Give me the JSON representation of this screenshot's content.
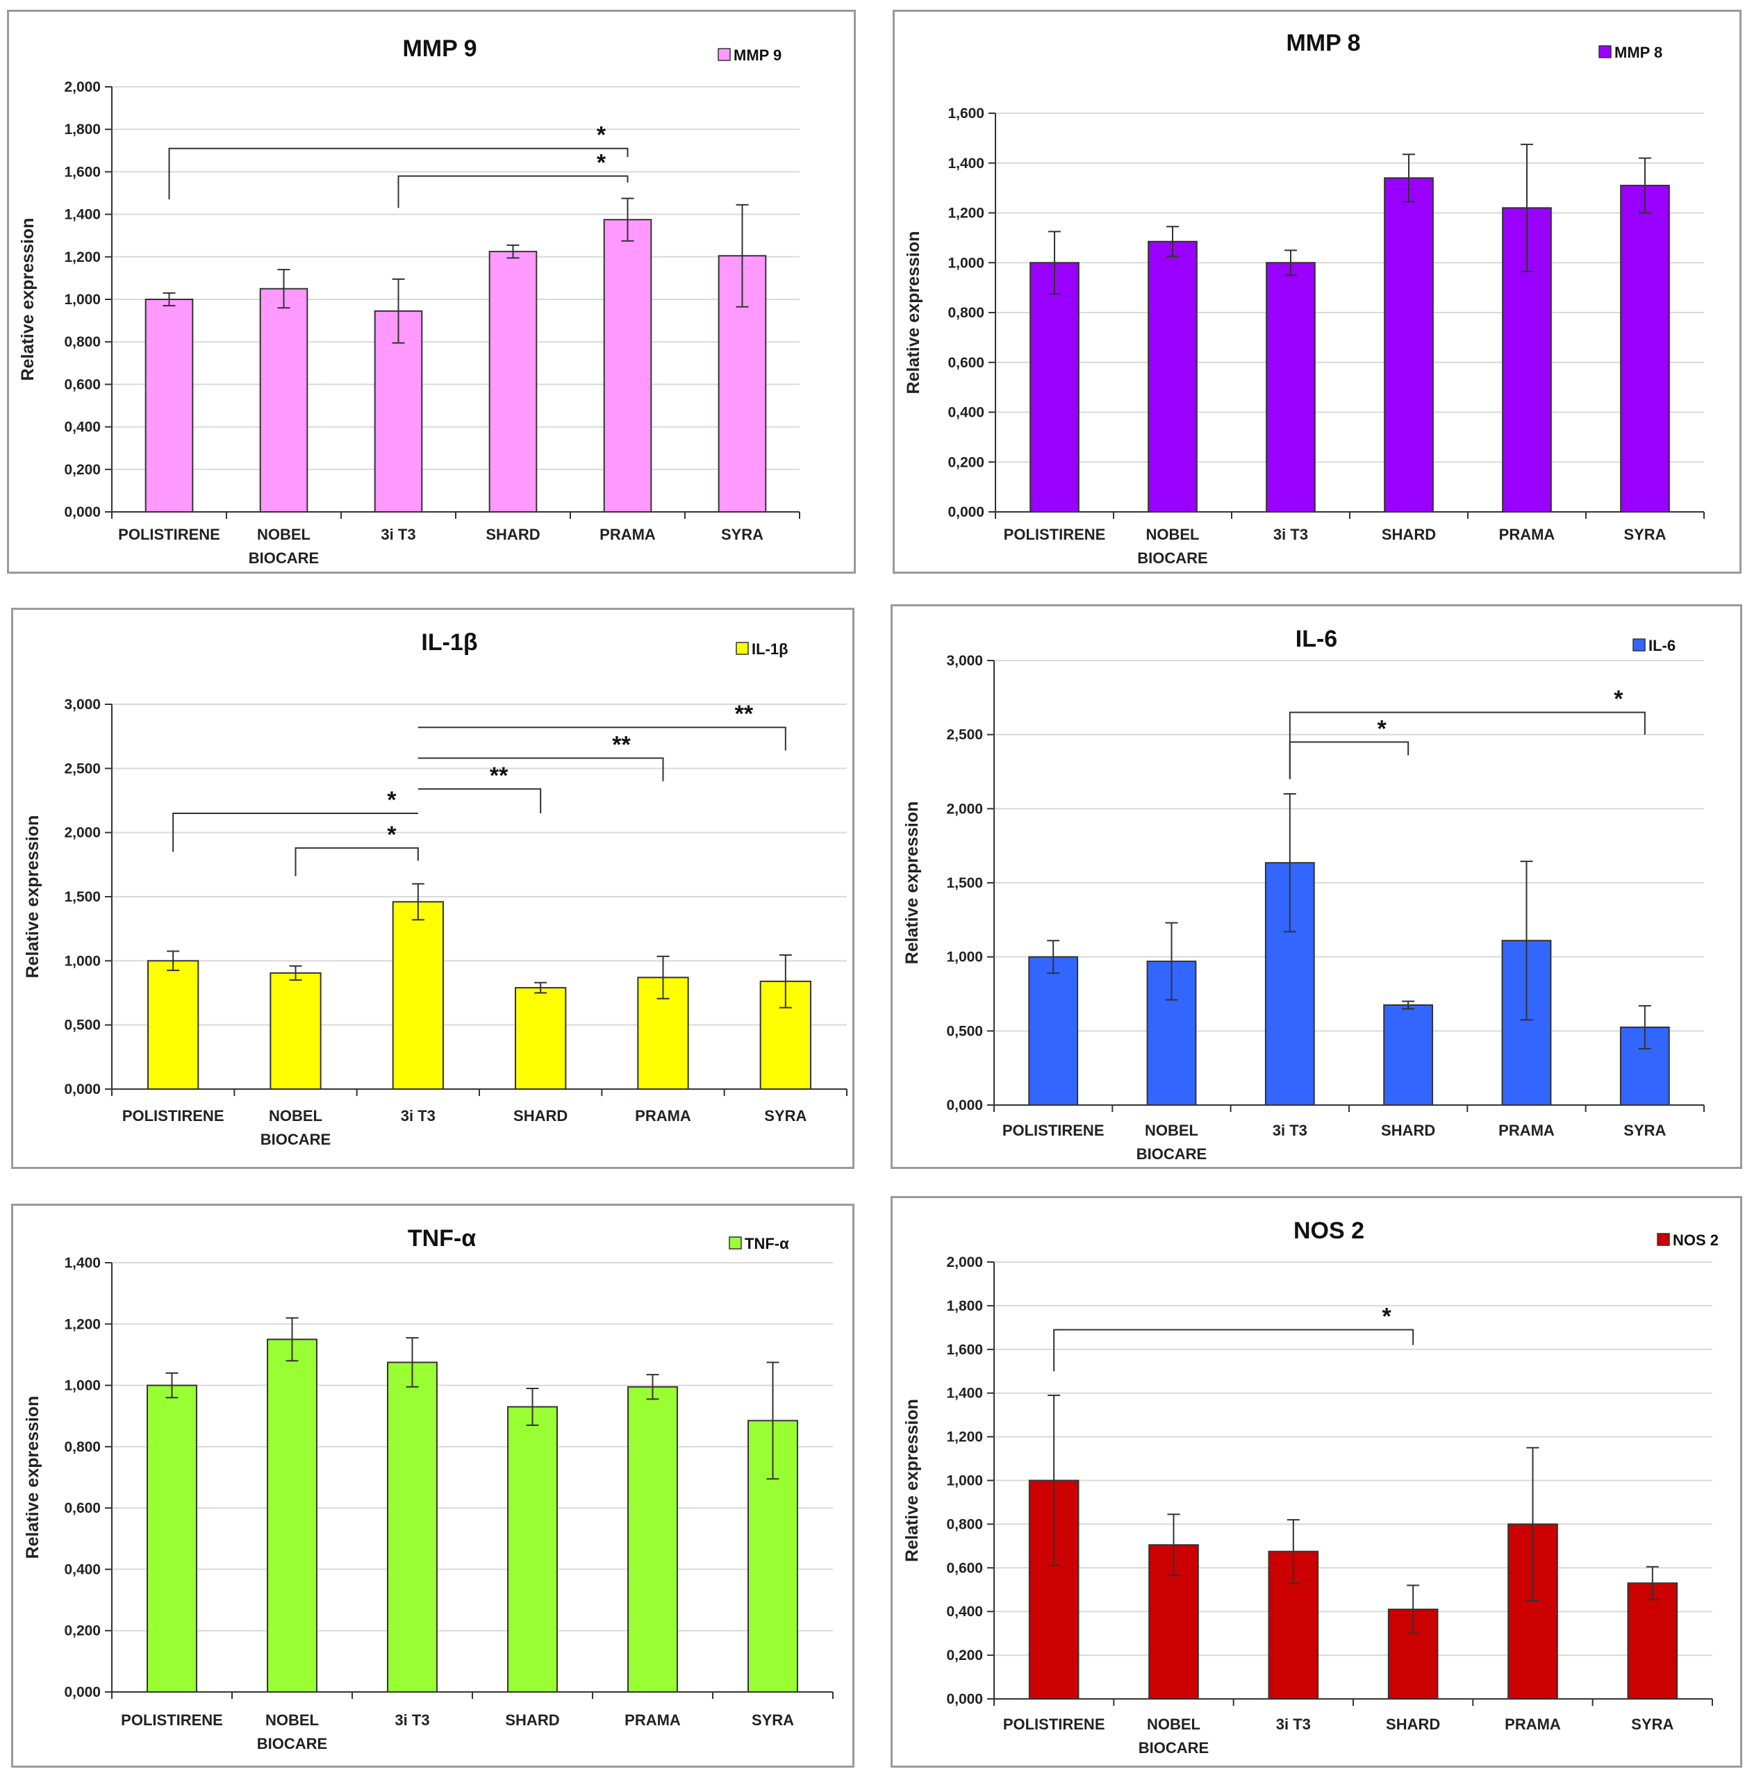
{
  "chart_data": [
    {
      "type": "bar",
      "title": "MMP 9",
      "legend": "MMP 9",
      "color": "#ff99ff",
      "ylabel": "Relative expression",
      "xlabel": "",
      "ylim": [
        0,
        2
      ],
      "yticks": [
        "0,000",
        "0,200",
        "0,400",
        "0,600",
        "0,800",
        "1,000",
        "1,200",
        "1,400",
        "1,600",
        "1,800",
        "2,000"
      ],
      "categories": [
        [
          "POLISTIRENE"
        ],
        [
          "NOBEL",
          "BIOCARE"
        ],
        [
          "3i T3"
        ],
        [
          "SHARD"
        ],
        [
          "PRAMA"
        ],
        [
          "SYRA"
        ]
      ],
      "values": [
        1.0,
        1.05,
        0.945,
        1.225,
        1.375,
        1.205
      ],
      "errors": [
        0.03,
        0.09,
        0.15,
        0.03,
        0.1,
        0.24
      ],
      "significance": [
        {
          "from": 0,
          "to": 4,
          "level": 1.71,
          "label": "*",
          "left_end": 1.47,
          "right_end": 1.67
        },
        {
          "from": 2,
          "to": 4,
          "level": 1.58,
          "label": "*",
          "left_end": 1.43,
          "right_end": 1.55
        }
      ]
    },
    {
      "type": "bar",
      "title": "MMP 8",
      "legend": "MMP 8",
      "color": "#9900ff",
      "ylabel": "Relative expression",
      "xlabel": "",
      "ylim": [
        0,
        1.6
      ],
      "yticks": [
        "0,000",
        "0,200",
        "0,400",
        "0,600",
        "0,800",
        "1,000",
        "1,200",
        "1,400",
        "1,600"
      ],
      "categories": [
        [
          "POLISTIRENE"
        ],
        [
          "NOBEL",
          "BIOCARE"
        ],
        [
          "3i T3"
        ],
        [
          "SHARD"
        ],
        [
          "PRAMA"
        ],
        [
          "SYRA"
        ]
      ],
      "values": [
        1.0,
        1.085,
        1.0,
        1.34,
        1.22,
        1.31
      ],
      "errors": [
        0.125,
        0.06,
        0.05,
        0.095,
        0.255,
        0.11
      ],
      "significance": []
    },
    {
      "type": "bar",
      "title": "IL-1β",
      "legend": "IL-1β",
      "color": "#ffff00",
      "ylabel": "Relative expression",
      "xlabel": "",
      "ylim": [
        0,
        3
      ],
      "yticks": [
        "0,000",
        "0,500",
        "1,000",
        "1,500",
        "2,000",
        "2,500",
        "3,000"
      ],
      "categories": [
        [
          "POLISTIRENE"
        ],
        [
          "NOBEL",
          "BIOCARE"
        ],
        [
          "3i T3"
        ],
        [
          "SHARD"
        ],
        [
          "PRAMA"
        ],
        [
          "SYRA"
        ]
      ],
      "values": [
        1.0,
        0.905,
        1.46,
        0.79,
        0.87,
        0.84
      ],
      "errors": [
        0.075,
        0.055,
        0.14,
        0.04,
        0.165,
        0.205
      ],
      "significance": [
        {
          "from": 2,
          "to": 5,
          "level": 2.82,
          "label": "**",
          "left_end": 2.82,
          "right_end": 2.64
        },
        {
          "from": 2,
          "to": 4,
          "level": 2.58,
          "label": "**",
          "left_end": 2.58,
          "right_end": 2.4
        },
        {
          "from": 2,
          "to": 3,
          "level": 2.34,
          "label": "**",
          "left_end": 2.34,
          "right_end": 2.15
        },
        {
          "from": 0,
          "to": 2,
          "level": 2.15,
          "label": "*",
          "left_end": 1.85,
          "right_end": 2.15
        },
        {
          "from": 1,
          "to": 2,
          "level": 1.88,
          "label": "*",
          "left_end": 1.66,
          "right_end": 1.78
        }
      ]
    },
    {
      "type": "bar",
      "title": "IL-6",
      "legend": "IL-6",
      "color": "#3366ff",
      "ylabel": "Relative expression",
      "xlabel": "",
      "ylim": [
        0,
        3
      ],
      "yticks": [
        "0,000",
        "0,500",
        "1,000",
        "1,500",
        "2,000",
        "2,500",
        "3,000"
      ],
      "categories": [
        [
          "POLISTIRENE"
        ],
        [
          "NOBEL",
          "BIOCARE"
        ],
        [
          "3i T3"
        ],
        [
          "SHARD"
        ],
        [
          "PRAMA"
        ],
        [
          "SYRA"
        ]
      ],
      "values": [
        1.0,
        0.97,
        1.635,
        0.675,
        1.11,
        0.525
      ],
      "errors": [
        0.11,
        0.26,
        0.465,
        0.025,
        0.535,
        0.145
      ],
      "significance": [
        {
          "from": 2,
          "to": 5,
          "level": 2.65,
          "label": "*",
          "left_end": 2.2,
          "right_end": 2.5
        },
        {
          "from": 2,
          "to": 3,
          "level": 2.45,
          "label": "*",
          "left_end": 2.2,
          "right_end": 2.36
        }
      ]
    },
    {
      "type": "bar",
      "title": "TNF-α",
      "legend": "TNF-α",
      "color": "#99ff33",
      "ylabel": "Relative expression",
      "xlabel": "",
      "ylim": [
        0,
        1.4
      ],
      "yticks": [
        "0,000",
        "0,200",
        "0,400",
        "0,600",
        "0,800",
        "1,000",
        "1,200",
        "1,400"
      ],
      "categories": [
        [
          "POLISTIRENE"
        ],
        [
          "NOBEL",
          "BIOCARE"
        ],
        [
          "3i T3"
        ],
        [
          "SHARD"
        ],
        [
          "PRAMA"
        ],
        [
          "SYRA"
        ]
      ],
      "values": [
        1.0,
        1.15,
        1.075,
        0.93,
        0.995,
        0.885
      ],
      "errors": [
        0.04,
        0.07,
        0.08,
        0.06,
        0.04,
        0.19
      ],
      "significance": []
    },
    {
      "type": "bar",
      "title": "NOS 2",
      "legend": "NOS 2",
      "color": "#cc0000",
      "ylabel": "Relative expression",
      "xlabel": "",
      "ylim": [
        0,
        2
      ],
      "yticks": [
        "0,000",
        "0,200",
        "0,400",
        "0,600",
        "0,800",
        "1,000",
        "1,200",
        "1,400",
        "1,600",
        "1,800",
        "2,000"
      ],
      "categories": [
        [
          "POLISTIRENE"
        ],
        [
          "NOBEL",
          "BIOCARE"
        ],
        [
          "3i T3"
        ],
        [
          "SHARD"
        ],
        [
          "PRAMA"
        ],
        [
          "SYRA"
        ]
      ],
      "values": [
        1.0,
        0.705,
        0.675,
        0.41,
        0.8,
        0.53
      ],
      "errors": [
        0.39,
        0.14,
        0.145,
        0.11,
        0.35,
        0.075
      ],
      "significance": [
        {
          "from": 0,
          "to": 3,
          "level": 1.69,
          "label": "*",
          "left_end": 1.5,
          "right_end": 1.62
        }
      ]
    }
  ]
}
